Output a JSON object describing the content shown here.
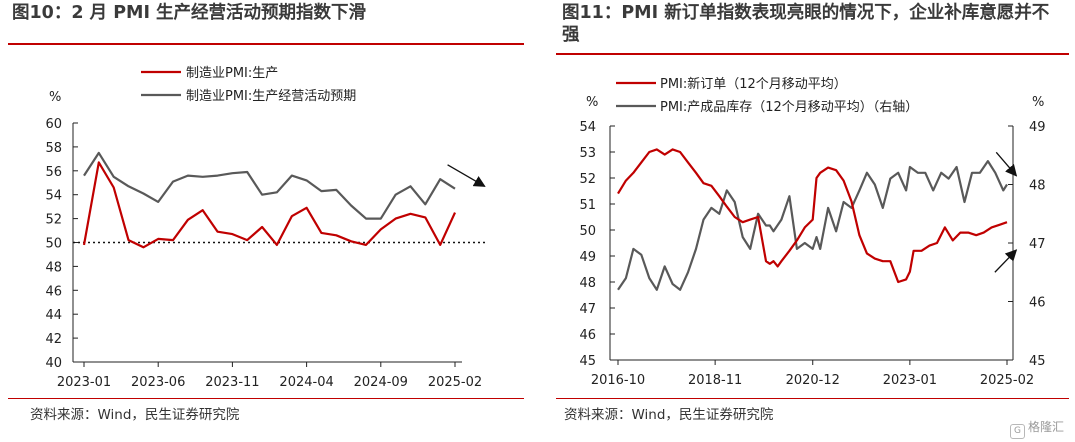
{
  "colors": {
    "red": "#c00000",
    "gray": "#595959",
    "rule": "#c00000",
    "baseline": "#111111"
  },
  "left": {
    "title": "图10：2 月 PMI 生产经营活动预期指数下滑",
    "source": "资料来源：Wind，民生证券研究院"
  },
  "right": {
    "title": "图11：PMI 新订单指数表现亮眼的情况下，企业补库意愿并不强",
    "source": "资料来源：Wind，民生证券研究院"
  },
  "watermark": {
    "icon": "G",
    "text": "格隆汇"
  },
  "chart_data": [
    {
      "type": "line",
      "legend_position": "top-left",
      "unit_label": "%",
      "ylim": [
        40,
        60
      ],
      "yticks": [
        40,
        42,
        44,
        46,
        48,
        50,
        52,
        54,
        56,
        58,
        60
      ],
      "x_tick_labels": [
        "2023-01",
        "2023-06",
        "2023-11",
        "2024-04",
        "2024-09",
        "2025-02"
      ],
      "x_tick_index": [
        0,
        5,
        10,
        15,
        20,
        25
      ],
      "reference_line": 50,
      "arrows": [
        {
          "direction": "down-right",
          "from_index": 24.5,
          "from_value": 56.5,
          "to_index": 27,
          "to_value": 54.7
        }
      ],
      "series": [
        {
          "name": "制造业PMI:生产",
          "color": "#c00000",
          "values": [
            49.8,
            56.7,
            54.6,
            50.2,
            49.6,
            50.3,
            50.2,
            51.9,
            52.7,
            50.9,
            50.7,
            50.2,
            51.3,
            49.8,
            52.2,
            52.9,
            50.8,
            50.6,
            50.1,
            49.8,
            51.1,
            52.0,
            52.4,
            52.1,
            49.8,
            52.5
          ]
        },
        {
          "name": "制造业PMI:生产经营活动预期",
          "color": "#595959",
          "values": [
            55.6,
            57.5,
            55.5,
            54.7,
            54.1,
            53.4,
            55.1,
            55.6,
            55.5,
            55.6,
            55.8,
            55.9,
            54.0,
            54.2,
            55.6,
            55.2,
            54.3,
            54.4,
            53.1,
            52.0,
            52.0,
            54.0,
            54.7,
            53.2,
            55.3,
            54.5
          ]
        }
      ]
    },
    {
      "type": "line",
      "legend_position": "top-left",
      "unit_label_left": "%",
      "unit_label_right": "%",
      "ylim_left": [
        45,
        54
      ],
      "yticks_left": [
        45,
        46,
        47,
        48,
        49,
        50,
        51,
        52,
        53,
        54
      ],
      "ylim_right": [
        45,
        49
      ],
      "yticks_right": [
        45,
        46,
        47,
        48,
        49
      ],
      "right_axis_label": "右轴",
      "x_range": [
        2016.75,
        2025.17
      ],
      "x_tick_labels": [
        "2016-10",
        "2018-11",
        "2020-12",
        "2023-01",
        "2025-02"
      ],
      "x_tick_positions": [
        2016.75,
        2018.83,
        2020.92,
        2023.0,
        2025.08
      ],
      "arrows": [
        {
          "direction": "down-right",
          "from_x": 2024.85,
          "from_y_right": 48.55,
          "to_x": 2025.28,
          "to_y_right": 48.15
        },
        {
          "direction": "up-right",
          "from_x": 2024.82,
          "from_y_right": 46.5,
          "to_x": 2025.28,
          "to_y_right": 46.88
        }
      ],
      "series": [
        {
          "name": "PMI:新订单（12个月移动平均）",
          "axis": "left",
          "color": "#c00000",
          "x": [
            2016.75,
            2016.92,
            2017.08,
            2017.25,
            2017.42,
            2017.58,
            2017.75,
            2017.92,
            2018.08,
            2018.25,
            2018.42,
            2018.58,
            2018.75,
            2018.92,
            2019.08,
            2019.25,
            2019.42,
            2019.58,
            2019.75,
            2019.92,
            2020.0,
            2020.08,
            2020.17,
            2020.25,
            2020.42,
            2020.58,
            2020.75,
            2020.92,
            2021.0,
            2021.08,
            2021.25,
            2021.42,
            2021.58,
            2021.75,
            2021.92,
            2022.08,
            2022.25,
            2022.42,
            2022.58,
            2022.75,
            2022.92,
            2023.0,
            2023.08,
            2023.25,
            2023.42,
            2023.58,
            2023.75,
            2023.92,
            2024.08,
            2024.25,
            2024.42,
            2024.58,
            2024.75,
            2024.92,
            2025.08
          ],
          "values": [
            51.4,
            51.9,
            52.2,
            52.6,
            53.0,
            53.1,
            52.9,
            53.1,
            53.0,
            52.6,
            52.2,
            51.8,
            51.7,
            51.3,
            50.9,
            50.5,
            50.3,
            50.4,
            50.5,
            48.8,
            48.7,
            48.8,
            48.6,
            48.8,
            49.2,
            49.6,
            50.1,
            50.4,
            52.0,
            52.2,
            52.4,
            52.3,
            51.9,
            51.1,
            49.8,
            49.1,
            48.9,
            48.8,
            48.8,
            48.0,
            48.1,
            48.4,
            49.2,
            49.2,
            49.4,
            49.5,
            50.1,
            49.6,
            49.9,
            49.9,
            49.8,
            49.9,
            50.1,
            50.2,
            50.3
          ]
        },
        {
          "name": "PMI:产成品库存（12个月移动平均）（右轴）",
          "axis": "right",
          "color": "#595959",
          "x": [
            2016.75,
            2016.92,
            2017.08,
            2017.25,
            2017.42,
            2017.58,
            2017.75,
            2017.92,
            2018.08,
            2018.25,
            2018.42,
            2018.58,
            2018.75,
            2018.92,
            2019.08,
            2019.25,
            2019.42,
            2019.58,
            2019.75,
            2019.92,
            2020.0,
            2020.08,
            2020.25,
            2020.42,
            2020.58,
            2020.75,
            2020.92,
            2021.0,
            2021.08,
            2021.25,
            2021.42,
            2021.58,
            2021.75,
            2021.92,
            2022.08,
            2022.25,
            2022.42,
            2022.58,
            2022.75,
            2022.92,
            2023.0,
            2023.17,
            2023.33,
            2023.5,
            2023.67,
            2023.83,
            2024.0,
            2024.17,
            2024.33,
            2024.5,
            2024.67,
            2024.83,
            2025.0,
            2025.08
          ],
          "values": [
            46.2,
            46.4,
            46.9,
            46.8,
            46.4,
            46.2,
            46.6,
            46.3,
            46.2,
            46.5,
            46.9,
            47.4,
            47.6,
            47.5,
            47.9,
            47.7,
            47.1,
            46.9,
            47.5,
            47.3,
            47.3,
            47.2,
            47.4,
            47.8,
            46.9,
            47.0,
            46.9,
            47.1,
            46.9,
            47.6,
            47.2,
            47.7,
            47.6,
            47.9,
            48.2,
            48.0,
            47.6,
            48.1,
            48.2,
            47.9,
            48.3,
            48.2,
            48.2,
            47.9,
            48.2,
            48.1,
            48.3,
            47.7,
            48.2,
            48.2,
            48.4,
            48.2,
            47.9,
            48.0
          ]
        }
      ]
    }
  ]
}
